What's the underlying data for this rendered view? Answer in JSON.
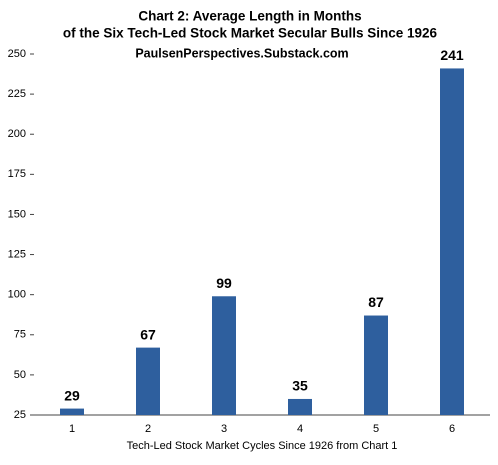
{
  "chart_data": {
    "type": "bar",
    "title": [
      "Chart 2: Average Length in Months",
      "of the Six Tech-Led Stock Market Secular Bulls Since 1926"
    ],
    "subtitle": "PaulsenPerspectives.Substack.com",
    "x_label": "Tech-Led Stock Market Cycles Since 1926 from Chart 1",
    "categories": [
      "1",
      "2",
      "3",
      "4",
      "5",
      "6"
    ],
    "values": [
      29,
      67,
      99,
      35,
      87,
      241
    ],
    "color": "#2e5f9e",
    "ylim": [
      25,
      250
    ],
    "yticks": [
      25,
      50,
      75,
      100,
      125,
      150,
      175,
      200,
      225,
      250
    ],
    "grid": false
  }
}
